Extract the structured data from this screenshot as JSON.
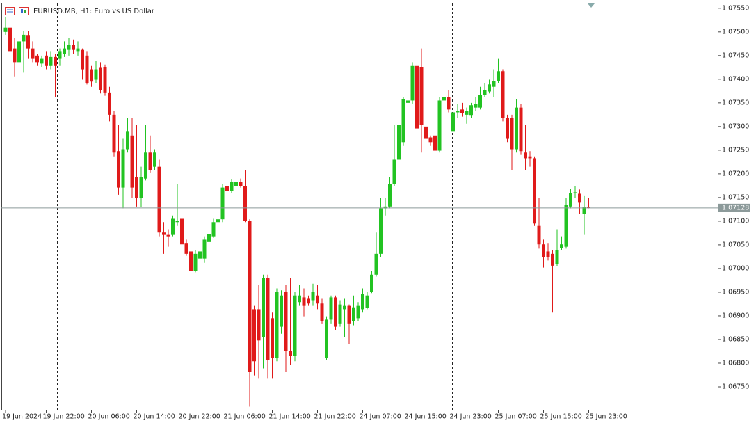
{
  "chart_data": {
    "type": "candlestick",
    "title": "EURUSD.MB, H1:  Euro vs US Dollar",
    "categories": [
      "19 Jun 2024",
      null,
      null,
      null,
      null,
      null,
      null,
      null,
      null,
      "19 Jun 22:00",
      null,
      null,
      null,
      null,
      null,
      null,
      null,
      null,
      null,
      "20 Jun 06:00",
      null,
      null,
      null,
      null,
      null,
      null,
      null,
      null,
      null,
      "20 Jun 14:00",
      null,
      null,
      null,
      null,
      null,
      null,
      null,
      null,
      null,
      "20 Jun 22:00",
      null,
      null,
      null,
      null,
      null,
      null,
      null,
      null,
      null,
      "21 Jun 06:00",
      null,
      null,
      null,
      null,
      null,
      null,
      null,
      null,
      null,
      "21 Jun 14:00",
      null,
      null,
      null,
      null,
      null,
      null,
      null,
      null,
      null,
      "21 Jun 22:00",
      null,
      null,
      null,
      null,
      null,
      null,
      null,
      null,
      null,
      "24 Jun 07:00",
      null,
      null,
      null,
      null,
      null,
      null,
      null,
      null,
      null,
      "24 Jun 15:00",
      null,
      null,
      null,
      null,
      null,
      null,
      null,
      null,
      null,
      "24 Jun 23:00",
      null,
      null,
      null,
      null,
      null,
      null,
      null,
      null,
      null,
      "25 Jun 07:00",
      null,
      null,
      null,
      null,
      null,
      null,
      null,
      null,
      null,
      "25 Jun 15:00",
      null,
      null,
      null,
      null,
      null,
      null,
      null,
      null,
      null,
      "25 Jun 23:00"
    ],
    "open": [
      1.075,
      1.07509,
      1.07465,
      1.07436,
      1.0748,
      1.07492,
      1.07465,
      1.0745,
      1.07433,
      1.0745,
      1.07428,
      1.07447,
      1.07443,
      1.07453,
      1.07462,
      1.07472,
      1.07458,
      1.07462,
      1.0745,
      1.07421,
      1.07399,
      1.07424,
      1.07425,
      1.07372,
      1.07325,
      1.07248,
      1.07171,
      1.07252,
      1.07281,
      1.07193,
      1.07149,
      1.0719,
      1.07245,
      1.07215,
      1.07215,
      1.07076,
      1.07071,
      1.07071,
      1.07098,
      1.07105,
      1.07054,
      1.07036,
      1.06995,
      1.07021,
      1.07021,
      1.07056,
      1.07068,
      1.07098,
      1.07104,
      1.07174,
      1.07164,
      1.07174,
      1.07183,
      1.07174,
      1.07101,
      1.06914,
      1.06914,
      1.06855,
      1.0698,
      1.06895,
      1.06811,
      1.06877,
      1.06951,
      1.06826,
      1.06815,
      1.06929,
      1.06939,
      1.06936,
      1.06933,
      1.06943,
      1.06926,
      1.06811,
      1.06892,
      1.06939,
      1.06884,
      1.06914,
      1.06921,
      1.06889,
      1.06895,
      1.06914,
      1.06917,
      1.06951,
      1.06987,
      1.07031,
      1.07127,
      1.07131,
      1.07178,
      1.0723,
      1.07267,
      1.0735,
      1.07355,
      1.07428,
      1.07425,
      1.073,
      1.07277,
      1.07281,
      1.07249,
      1.07355,
      1.07362,
      1.07289,
      1.0733,
      1.07336,
      1.07325,
      1.07323,
      1.0734,
      1.0734,
      1.07367,
      1.07374,
      1.07384,
      1.07396,
      1.07417,
      1.07318,
      1.07318,
      1.07252,
      1.0734,
      1.07245,
      1.07237,
      1.07233,
      1.0709,
      1.07051,
      1.07036,
      1.07031,
      1.07009,
      1.07043,
      1.07046,
      1.07131,
      1.07159,
      1.07158,
      1.07115,
      1.0713
    ],
    "high": [
      1.07531,
      1.07536,
      1.07487,
      1.07487,
      1.07502,
      1.07502,
      1.0748,
      1.07453,
      1.0745,
      1.07458,
      1.07458,
      1.07453,
      1.07465,
      1.0748,
      1.07487,
      1.07484,
      1.0748,
      1.07465,
      1.07458,
      1.07428,
      1.07439,
      1.07436,
      1.07431,
      1.07384,
      1.07333,
      1.07303,
      1.07274,
      1.07318,
      1.07318,
      1.07303,
      1.07215,
      1.07303,
      1.07281,
      1.07252,
      1.0723,
      1.07098,
      1.07083,
      1.07112,
      1.07178,
      1.07108,
      1.07061,
      1.07046,
      1.07039,
      1.07046,
      1.07068,
      1.0709,
      1.07105,
      1.07109,
      1.07178,
      1.07186,
      1.07189,
      1.07193,
      1.0719,
      1.07208,
      1.07104,
      1.06921,
      1.06965,
      1.06987,
      1.06987,
      1.06907,
      1.06958,
      1.06954,
      1.06965,
      1.0698,
      1.06951,
      1.06965,
      1.06958,
      1.06943,
      1.06968,
      1.06965,
      1.06936,
      1.06899,
      1.06943,
      1.06943,
      1.06933,
      1.06936,
      1.06924,
      1.06943,
      1.06929,
      1.06958,
      1.06951,
      1.06995,
      1.07076,
      1.07149,
      1.07149,
      1.07193,
      1.07303,
      1.07306,
      1.07362,
      1.07359,
      1.07436,
      1.07433,
      1.07465,
      1.07318,
      1.07281,
      1.07296,
      1.07362,
      1.0738,
      1.07377,
      1.07336,
      1.07348,
      1.0735,
      1.0734,
      1.0735,
      1.07362,
      1.07384,
      1.07392,
      1.07399,
      1.07421,
      1.07443,
      1.07421,
      1.07325,
      1.07325,
      1.07358,
      1.07348,
      1.07303,
      1.07248,
      1.07237,
      1.07149,
      1.07061,
      1.07054,
      1.07039,
      1.07083,
      1.07068,
      1.07149,
      1.07168,
      1.07174,
      1.07167,
      1.07153,
      1.07149
    ],
    "low": [
      1.07494,
      1.07424,
      1.07406,
      1.07421,
      1.07414,
      1.07443,
      1.07436,
      1.07428,
      1.07425,
      1.07421,
      1.07421,
      1.07362,
      1.07428,
      1.07447,
      1.0745,
      1.07453,
      1.0745,
      1.07399,
      1.07389,
      1.07384,
      1.07392,
      1.0737,
      1.07365,
      1.07311,
      1.07237,
      1.07156,
      1.07127,
      1.07245,
      1.07149,
      1.07131,
      1.0713,
      1.07186,
      1.07203,
      1.07208,
      1.07068,
      1.07031,
      1.07046,
      1.07068,
      1.0709,
      1.07039,
      1.07027,
      1.06987,
      1.06992,
      1.07017,
      1.07012,
      1.07051,
      1.07065,
      1.07061,
      1.07098,
      1.07156,
      1.07159,
      1.07171,
      1.07171,
      1.07098,
      1.06708,
      1.06774,
      1.06767,
      1.06789,
      1.06767,
      1.06767,
      1.06804,
      1.06862,
      1.06782,
      1.06796,
      1.06804,
      1.06921,
      1.06899,
      1.06921,
      1.06921,
      1.06914,
      1.06884,
      1.06807,
      1.06884,
      1.0687,
      1.06877,
      1.06855,
      1.0684,
      1.0688,
      1.06889,
      1.06907,
      1.06914,
      1.06948,
      1.06983,
      1.07024,
      1.07112,
      1.07127,
      1.07174,
      1.07223,
      1.07259,
      1.07311,
      1.07348,
      1.07274,
      1.07245,
      1.07237,
      1.07259,
      1.0722,
      1.07245,
      1.07348,
      1.0733,
      1.07286,
      1.07318,
      1.07321,
      1.07306,
      1.07318,
      1.07333,
      1.07336,
      1.07362,
      1.0737,
      1.07362,
      1.07392,
      1.07311,
      1.07267,
      1.07208,
      1.07245,
      1.0724,
      1.07208,
      1.07215,
      1.0709,
      1.07042,
      1.07002,
      1.07017,
      1.06907,
      1.07005,
      1.07039,
      1.07042,
      1.07127,
      1.07149,
      1.07115,
      1.07071,
      1.07127
    ],
    "close": [
      1.07509,
      1.07458,
      1.07436,
      1.0748,
      1.07494,
      1.07465,
      1.07443,
      1.07436,
      1.07443,
      1.07428,
      1.07447,
      1.07428,
      1.07458,
      1.07465,
      1.07472,
      1.07462,
      1.07465,
      1.07421,
      1.07392,
      1.07395,
      1.07421,
      1.07377,
      1.07372,
      1.07325,
      1.07245,
      1.07171,
      1.07252,
      1.07289,
      1.07171,
      1.07149,
      1.07193,
      1.07245,
      1.07208,
      1.07245,
      1.07076,
      1.07071,
      1.07068,
      1.07105,
      1.07101,
      1.07051,
      1.07031,
      1.06995,
      1.07031,
      1.07036,
      1.07061,
      1.07073,
      1.07098,
      1.07104,
      1.07171,
      1.07164,
      1.07183,
      1.07183,
      1.07174,
      1.07101,
      1.06782,
      1.06804,
      1.06848,
      1.0698,
      1.06807,
      1.06811,
      1.06951,
      1.06943,
      1.06826,
      1.06815,
      1.06943,
      1.06943,
      1.06921,
      1.06926,
      1.06951,
      1.06926,
      1.06889,
      1.06892,
      1.06939,
      1.06877,
      1.06924,
      1.06921,
      1.06884,
      1.06918,
      1.06921,
      1.06946,
      1.06943,
      1.06987,
      1.07031,
      1.07127,
      1.07131,
      1.07178,
      1.0723,
      1.07303,
      1.07358,
      1.07355,
      1.07428,
      1.07296,
      1.07303,
      1.07274,
      1.07267,
      1.07249,
      1.07355,
      1.07362,
      1.07336,
      1.0733,
      1.07333,
      1.07328,
      1.07333,
      1.07345,
      1.07348,
      1.07367,
      1.07377,
      1.07389,
      1.07396,
      1.07417,
      1.07318,
      1.07274,
      1.07252,
      1.0734,
      1.07248,
      1.07233,
      1.07233,
      1.07095,
      1.07051,
      1.07024,
      1.07024,
      1.07006,
      1.07039,
      1.07051,
      1.07134,
      1.07159,
      1.07161,
      1.07139,
      1.0713,
      1.07128
    ],
    "up_color": "#22c322",
    "down_color": "#e01a1a",
    "last_price": 1.07128,
    "ylim": [
      1.067,
      1.0756
    ],
    "yticks": [
      {
        "value": 1.0755,
        "label": "1.07550"
      },
      {
        "value": 1.075,
        "label": "1.07500"
      },
      {
        "value": 1.0745,
        "label": "1.07450"
      },
      {
        "value": 1.074,
        "label": "1.07400"
      },
      {
        "value": 1.0735,
        "label": "1.07350"
      },
      {
        "value": 1.073,
        "label": "1.07300"
      },
      {
        "value": 1.0725,
        "label": "1.07250"
      },
      {
        "value": 1.072,
        "label": "1.07200"
      },
      {
        "value": 1.0715,
        "label": "1.07150"
      },
      {
        "value": 1.071,
        "label": "1.07100"
      },
      {
        "value": 1.0705,
        "label": "1.07050"
      },
      {
        "value": 1.07,
        "label": "1.07000"
      },
      {
        "value": 1.0695,
        "label": "1.06950"
      },
      {
        "value": 1.069,
        "label": "1.06900"
      },
      {
        "value": 1.0685,
        "label": "1.06850"
      },
      {
        "value": 1.068,
        "label": "1.06800"
      },
      {
        "value": 1.0675,
        "label": "1.06750"
      }
    ]
  }
}
